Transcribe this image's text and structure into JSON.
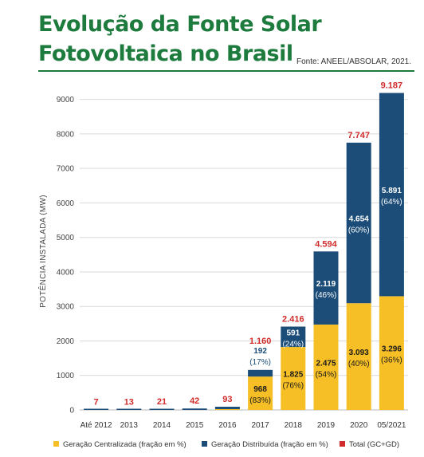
{
  "title": {
    "line1": "Evolução da Fonte Solar",
    "line2": "Fotovoltaica no Brasil"
  },
  "source": "Fonte: ANEEL/ABSOLAR, 2021.",
  "colors": {
    "title": "#1e7b3e",
    "centralizada": "#f6bf26",
    "distribuida": "#1b4d78",
    "total": "#d12b2b",
    "grid": "#d9d9d9"
  },
  "chart_data": {
    "type": "bar",
    "stacked": true,
    "ylabel": "POTÊNCIA INSTALADA (MW)",
    "ylim": [
      0,
      9200
    ],
    "yticks": [
      "0",
      "1000",
      "2000",
      "3000",
      "4000",
      "5000",
      "6000",
      "7000",
      "8000",
      "9000"
    ],
    "grid": true,
    "legend_position": "bottom",
    "categories": [
      "Até 2012",
      "2013",
      "2014",
      "2015",
      "2016",
      "2017",
      "2018",
      "2019",
      "2020",
      "05/2021"
    ],
    "series": [
      {
        "name": "Geração Centralizada (fração em %)",
        "values": [
          0,
          0,
          0,
          0,
          24,
          968,
          1825,
          2475,
          3093,
          3296
        ],
        "value_labels": [
          "",
          "",
          "",
          "",
          "",
          "968",
          "1.825",
          "2.475",
          "3.093",
          "3.296"
        ],
        "pct_labels": [
          "",
          "",
          "",
          "",
          "",
          "(83%)",
          "(76%)",
          "(54%)",
          "(40%)",
          "(36%)"
        ]
      },
      {
        "name": "Geração Distribuída (fração em %)",
        "values": [
          7,
          13,
          21,
          42,
          69,
          192,
          591,
          2119,
          4654,
          5891
        ],
        "value_labels": [
          "",
          "",
          "",
          "",
          "",
          "192",
          "591",
          "2.119",
          "4.654",
          "5.891"
        ],
        "pct_labels": [
          "",
          "",
          "",
          "",
          "",
          "(17%)",
          "(24%)",
          "(46%)",
          "(60%)",
          "(64%)"
        ]
      }
    ],
    "totals": {
      "name": "Total (GC+GD)",
      "values": [
        7,
        13,
        21,
        42,
        93,
        1160,
        2416,
        4594,
        7747,
        9187
      ],
      "labels": [
        "7",
        "13",
        "21",
        "42",
        "93",
        "1.160",
        "2.416",
        "4.594",
        "7.747",
        "9.187"
      ]
    }
  }
}
